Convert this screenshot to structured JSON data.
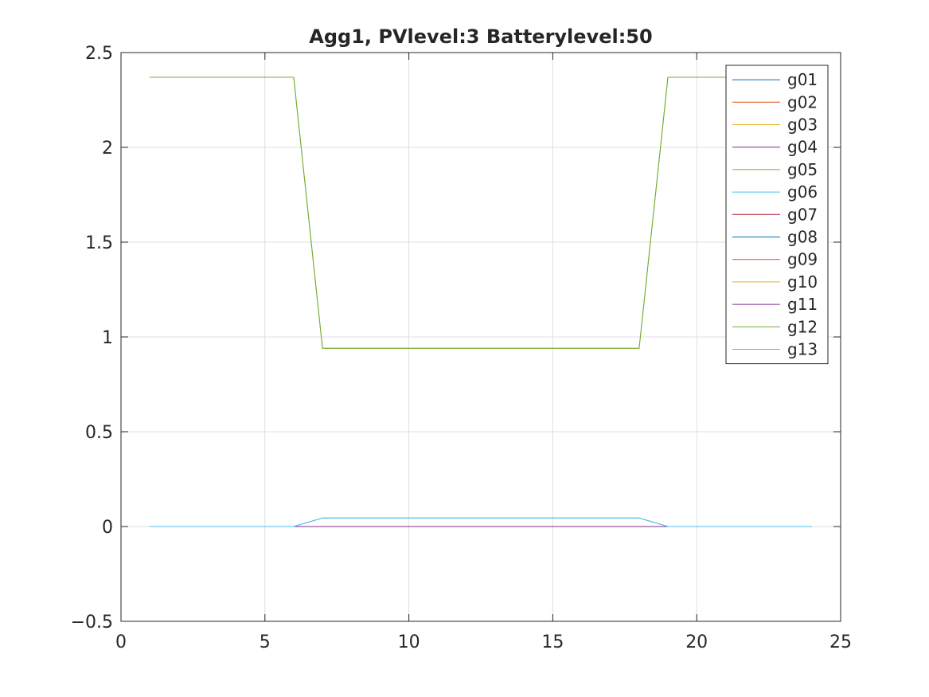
{
  "chart_data": {
    "type": "line",
    "title": "Agg1, PVlevel:3 Batterylevel:50",
    "xlabel": "",
    "ylabel": "",
    "xlim": [
      0,
      25
    ],
    "ylim": [
      -0.5,
      2.5
    ],
    "xticks": [
      0,
      5,
      10,
      15,
      20,
      25
    ],
    "yticks": [
      -0.5,
      0,
      0.5,
      1,
      1.5,
      2,
      2.5
    ],
    "xtick_labels": [
      "0",
      "5",
      "10",
      "15",
      "20",
      "25"
    ],
    "ytick_labels": [
      "−0.5",
      "0",
      "0.5",
      "1",
      "1.5",
      "2",
      "2.5"
    ],
    "grid": true,
    "legend_position": "top-right",
    "x": [
      1,
      2,
      3,
      4,
      5,
      6,
      7,
      8,
      9,
      10,
      11,
      12,
      13,
      14,
      15,
      16,
      17,
      18,
      19,
      20,
      21,
      22,
      23,
      24
    ],
    "series": [
      {
        "name": "g01",
        "color": "#0072bd",
        "values": [
          0,
          0,
          0,
          0,
          0,
          0,
          0,
          0,
          0,
          0,
          0,
          0,
          0,
          0,
          0,
          0,
          0,
          0,
          0,
          0,
          0,
          0,
          0,
          0
        ]
      },
      {
        "name": "g02",
        "color": "#d95319",
        "values": [
          0,
          0,
          0,
          0,
          0,
          0,
          0,
          0,
          0,
          0,
          0,
          0,
          0,
          0,
          0,
          0,
          0,
          0,
          0,
          0,
          0,
          0,
          0,
          0
        ]
      },
      {
        "name": "g03",
        "color": "#edb120",
        "values": [
          0,
          0,
          0,
          0,
          0,
          0,
          0,
          0,
          0,
          0,
          0,
          0,
          0,
          0,
          0,
          0,
          0,
          0,
          0,
          0,
          0,
          0,
          0,
          0
        ]
      },
      {
        "name": "g04",
        "color": "#7e2f8e",
        "values": [
          0,
          0,
          0,
          0,
          0,
          0,
          0,
          0,
          0,
          0,
          0,
          0,
          0,
          0,
          0,
          0,
          0,
          0,
          0,
          0,
          0,
          0,
          0,
          0
        ]
      },
      {
        "name": "g05",
        "color": "#77ac30",
        "values": [
          2.37,
          2.37,
          2.37,
          2.37,
          2.37,
          2.37,
          0.94,
          0.94,
          0.94,
          0.94,
          0.94,
          0.94,
          0.94,
          0.94,
          0.94,
          0.94,
          0.94,
          0.94,
          2.37,
          2.37,
          2.37,
          2.37,
          2.37,
          2.37
        ]
      },
      {
        "name": "g06",
        "color": "#4dbeee",
        "values": [
          0,
          0,
          0,
          0,
          0,
          0,
          0.045,
          0.045,
          0.045,
          0.045,
          0.045,
          0.045,
          0.045,
          0.045,
          0.045,
          0.045,
          0.045,
          0.045,
          0,
          0,
          0,
          0,
          0,
          0
        ]
      },
      {
        "name": "g07",
        "color": "#a2142f",
        "values": [
          0,
          0,
          0,
          0,
          0,
          0,
          0,
          0,
          0,
          0,
          0,
          0,
          0,
          0,
          0,
          0,
          0,
          0,
          0,
          0,
          0,
          0,
          0,
          0
        ]
      },
      {
        "name": "g08",
        "color": "#0072bd",
        "values": [
          0,
          0,
          0,
          0,
          0,
          0,
          0,
          0,
          0,
          0,
          0,
          0,
          0,
          0,
          0,
          0,
          0,
          0,
          0,
          0,
          0,
          0,
          0,
          0
        ]
      },
      {
        "name": "g09",
        "color": "#d95319",
        "values": [
          0,
          0,
          0,
          0,
          0,
          0,
          0,
          0,
          0,
          0,
          0,
          0,
          0,
          0,
          0,
          0,
          0,
          0,
          0,
          0,
          0,
          0,
          0,
          0
        ]
      },
      {
        "name": "g10",
        "color": "#edb120",
        "values": [
          0,
          0,
          0,
          0,
          0,
          0,
          0,
          0,
          0,
          0,
          0,
          0,
          0,
          0,
          0,
          0,
          0,
          0,
          0,
          0,
          0,
          0,
          0,
          0
        ]
      },
      {
        "name": "g11",
        "color": "#7e2f8e",
        "values": [
          0,
          0,
          0,
          0,
          0,
          0,
          0,
          0,
          0,
          0,
          0,
          0,
          0,
          0,
          0,
          0,
          0,
          0,
          0,
          0,
          0,
          0,
          0,
          0
        ]
      },
      {
        "name": "g12",
        "color": "#77ac30",
        "values": [
          2.37,
          2.37,
          2.37,
          2.37,
          2.37,
          2.37,
          0.94,
          0.94,
          0.94,
          0.94,
          0.94,
          0.94,
          0.94,
          0.94,
          0.94,
          0.94,
          0.94,
          0.94,
          2.37,
          2.37,
          2.37,
          2.37,
          2.37,
          2.37
        ]
      },
      {
        "name": "g13",
        "color": "#4dbeee",
        "values": [
          0,
          0,
          0,
          0,
          0,
          0,
          0.045,
          0.045,
          0.045,
          0.045,
          0.045,
          0.045,
          0.045,
          0.045,
          0.045,
          0.045,
          0.045,
          0.045,
          0,
          0,
          0,
          0,
          0,
          0
        ]
      }
    ]
  }
}
